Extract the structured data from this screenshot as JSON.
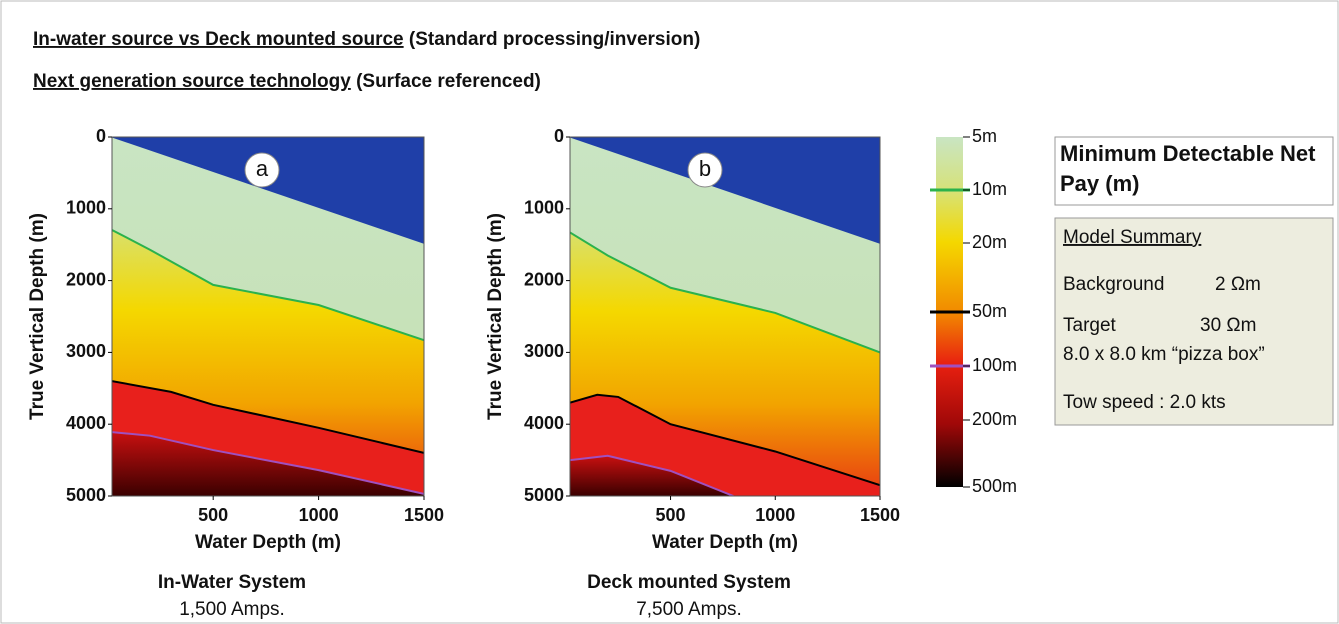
{
  "header": {
    "line1_underlined": "In-water source vs Deck mounted source",
    "line1_rest": " (Standard processing/inversion)",
    "line2_underlined": "Next generation source technology",
    "line2_rest": " (Surface referenced)"
  },
  "colorbar": {
    "labels": [
      "5m",
      "10m",
      "20m",
      "50m",
      "100m",
      "200m",
      "500m"
    ]
  },
  "legend_title": "Minimum Detectable Net Pay (m)",
  "summary": {
    "title": "Model Summary",
    "rows": [
      [
        "Background",
        "2 Ωm"
      ],
      [
        "Target",
        "30 Ωm"
      ]
    ],
    "note": "8.0 x 8.0 km “pizza box”",
    "tow": "Tow speed : 2.0 kts"
  },
  "chart_data": [
    {
      "type": "contour",
      "panel_label": "a",
      "xlabel": "Water Depth (m)",
      "ylabel": "True Vertical Depth (m)",
      "caption": "In-Water System",
      "subcaption": "1,500 Amps.",
      "xlim": [
        20,
        1500
      ],
      "ylim": [
        0,
        5000
      ],
      "xticks": [
        500,
        1000,
        1500
      ],
      "yticks": [
        0,
        1000,
        2000,
        3000,
        4000,
        5000
      ],
      "series": [
        {
          "color": "#1f3fa8",
          "x": [
            20,
            1500
          ],
          "values": [
            0,
            1480
          ]
        },
        {
          "color": "#2bb24c",
          "x": [
            20,
            200,
            500,
            1000,
            1500
          ],
          "values": [
            1295,
            1570,
            2060,
            2340,
            2830
          ]
        },
        {
          "color": "#000000",
          "x": [
            20,
            300,
            500,
            1000,
            1500
          ],
          "values": [
            3400,
            3550,
            3730,
            4050,
            4400
          ]
        },
        {
          "color": "#a050c0",
          "x": [
            20,
            200,
            500,
            1000,
            1500
          ],
          "values": [
            4110,
            4160,
            4360,
            4640,
            4970
          ]
        }
      ]
    },
    {
      "type": "contour",
      "panel_label": "b",
      "xlabel": "Water Depth (m)",
      "ylabel": "True Vertical Depth (m)",
      "caption": "Deck mounted System",
      "subcaption": "7,500 Amps.",
      "xlim": [
        20,
        1500
      ],
      "ylim": [
        0,
        5000
      ],
      "xticks": [
        500,
        1000,
        1500
      ],
      "yticks": [
        0,
        1000,
        2000,
        3000,
        4000,
        5000
      ],
      "series": [
        {
          "color": "#1f3fa8",
          "x": [
            20,
            1500
          ],
          "values": [
            0,
            1480
          ]
        },
        {
          "color": "#2bb24c",
          "x": [
            20,
            200,
            500,
            1000,
            1500
          ],
          "values": [
            1330,
            1650,
            2100,
            2450,
            3000
          ]
        },
        {
          "color": "#000000",
          "x": [
            20,
            150,
            250,
            500,
            1000,
            1500
          ],
          "values": [
            3700,
            3590,
            3620,
            4000,
            4380,
            4850
          ]
        },
        {
          "color": "#a050c0",
          "x": [
            20,
            200,
            500,
            800
          ],
          "values": [
            4500,
            4440,
            4650,
            5000
          ]
        }
      ]
    }
  ]
}
